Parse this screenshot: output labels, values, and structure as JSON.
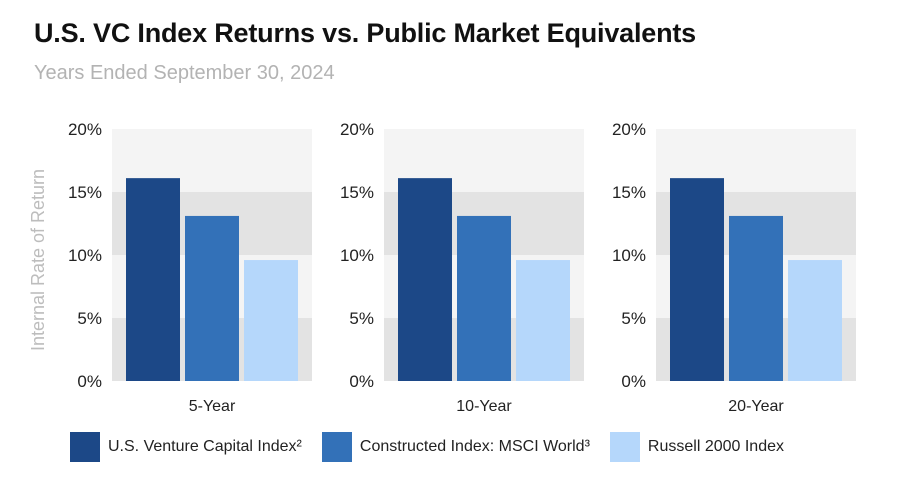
{
  "header": {
    "title": "U.S. VC Index Returns vs. Public Market Equivalents",
    "subtitle": "Years Ended September 30, 2024"
  },
  "colors": {
    "series": [
      "#1c4887",
      "#3371b8",
      "#b5d7fb"
    ],
    "band_light": "#f4f4f4",
    "band_dark": "#e3e3e3"
  },
  "chart_data": {
    "type": "bar",
    "ylabel": "Internal Rate of Return",
    "ylim": [
      0,
      20
    ],
    "yticks": [
      "0%",
      "5%",
      "10%",
      "15%",
      "20%"
    ],
    "grid": "alternating horizontal bands",
    "legend_position": "bottom",
    "series": [
      {
        "name": "U.S. Venture Capital Index²",
        "values": [
          16.1,
          16.1,
          16.1
        ]
      },
      {
        "name": "Constructed Index: MSCI World³",
        "values": [
          13.1,
          13.1,
          13.1
        ]
      },
      {
        "name": "Russell 2000 Index",
        "values": [
          9.6,
          9.6,
          9.6
        ]
      }
    ],
    "panels": [
      {
        "category": "5-Year"
      },
      {
        "category": "10-Year"
      },
      {
        "category": "20-Year"
      }
    ]
  }
}
